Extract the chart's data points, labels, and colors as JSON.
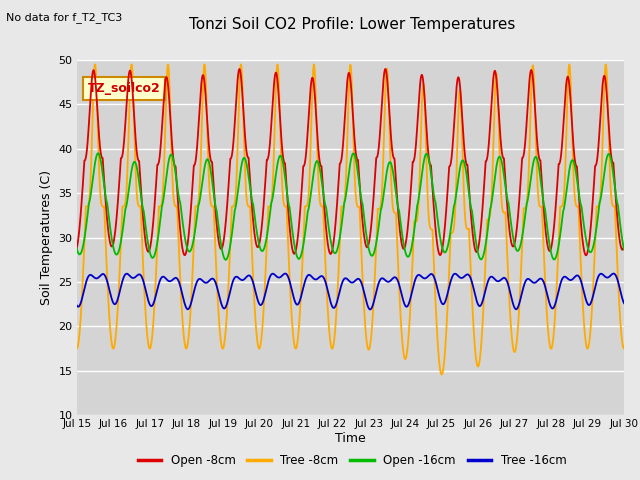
{
  "title": "Tonzi Soil CO2 Profile: Lower Temperatures",
  "subtitle": "No data for f_T2_TC3",
  "xlabel": "Time",
  "ylabel": "Soil Temperatures (C)",
  "ylim": [
    10,
    50
  ],
  "xlim": [
    0,
    360
  ],
  "fig_bg_color": "#e8e8e8",
  "plot_bg_color": "#d4d4d4",
  "series_colors": [
    "#dd0000",
    "#ffaa00",
    "#00bb00",
    "#0000cc"
  ],
  "series_labels": [
    "Open -8cm",
    "Tree -8cm",
    "Open -16cm",
    "Tree -16cm"
  ],
  "annotation_text": "TZ_soilco2",
  "annotation_bg": "#ffffcc",
  "annotation_border": "#cc8800",
  "ytick_labels": [
    "10",
    "15",
    "20",
    "25",
    "30",
    "35",
    "40",
    "45",
    "50"
  ],
  "ytick_positions": [
    10,
    15,
    20,
    25,
    30,
    35,
    40,
    45,
    50
  ],
  "xtick_labels": [
    "Jul 15",
    "Jul 16",
    "Jul 17",
    "Jul 18",
    "Jul 19",
    "Jul 20",
    "Jul 21",
    "Jul 22",
    "Jul 23",
    "Jul 24",
    "Jul 25",
    "Jul 26",
    "Jul 27",
    "Jul 28",
    "Jul 29",
    "Jul 30"
  ],
  "xtick_positions": [
    0,
    24,
    48,
    72,
    96,
    120,
    144,
    168,
    192,
    216,
    240,
    264,
    288,
    312,
    336,
    360
  ]
}
